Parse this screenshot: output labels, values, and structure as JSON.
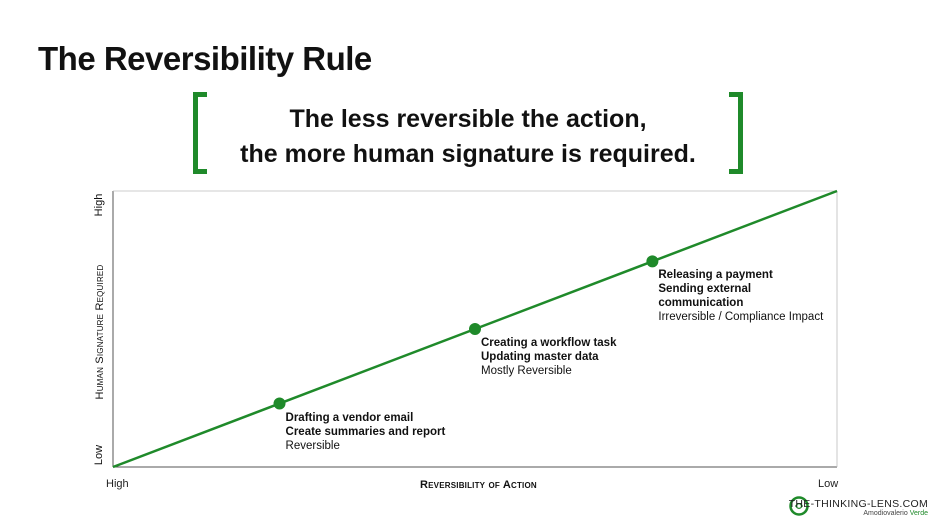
{
  "title": "The Reversibility Rule",
  "quote": {
    "line1": "The less reversible the action,",
    "line2": "the more human signature is required."
  },
  "axes": {
    "x_label": "Reversibility of Action",
    "x_start": "High",
    "x_end": "Low",
    "y_label": "Human Signature Required",
    "y_start": "Low",
    "y_end": "High"
  },
  "points": [
    {
      "position": 0.23,
      "lines": [
        "Drafting a vendor email",
        "Create summaries and report"
      ],
      "category": "Reversible"
    },
    {
      "position": 0.5,
      "lines": [
        "Creating a workflow task",
        "Updating master data"
      ],
      "category": "Mostly Reversible"
    },
    {
      "position": 0.745,
      "lines": [
        "Releasing a payment",
        "Sending external",
        "communication"
      ],
      "category": "Irreversible / Compliance Impact"
    }
  ],
  "brand": {
    "name": "THE-THINKING-LENS.COM",
    "sub_prefix": "Amodiovalerio ",
    "sub_accent": "Verde"
  },
  "colors": {
    "accent": "#1f8a2a",
    "axis": "#555555"
  }
}
